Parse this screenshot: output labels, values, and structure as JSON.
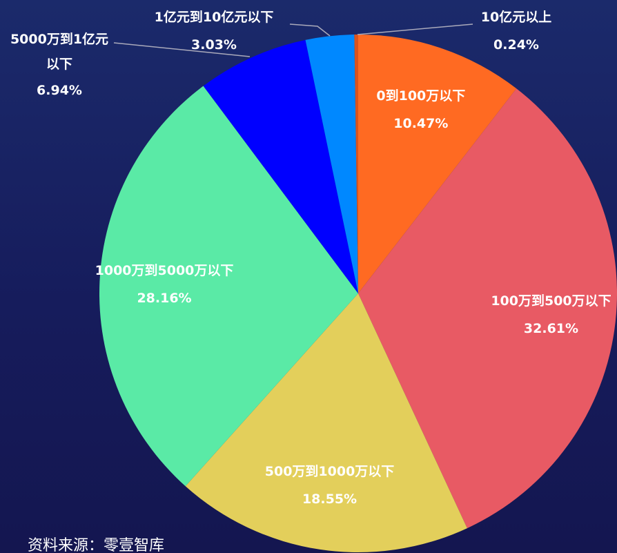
{
  "chart_data": {
    "type": "pie",
    "categories": [
      "0到100万以下",
      "100万到500万以下",
      "500万到1000万以下",
      "1000万到5000万以下",
      "5000万到1亿元以下",
      "1亿元到10亿元以下",
      "10亿元以上"
    ],
    "values": [
      10.47,
      32.61,
      18.55,
      28.16,
      6.94,
      3.03,
      0.24
    ],
    "value_labels": [
      "10.47%",
      "32.61%",
      "18.55%",
      "28.16%",
      "6.94%",
      "3.03%",
      "0.24%"
    ],
    "colors": [
      "#ff6a22",
      "#e85a64",
      "#e3cf5b",
      "#5aeaa6",
      "#0000ff",
      "#0088ff",
      "#d9531e"
    ],
    "source": "资料来源：零壹智库"
  }
}
